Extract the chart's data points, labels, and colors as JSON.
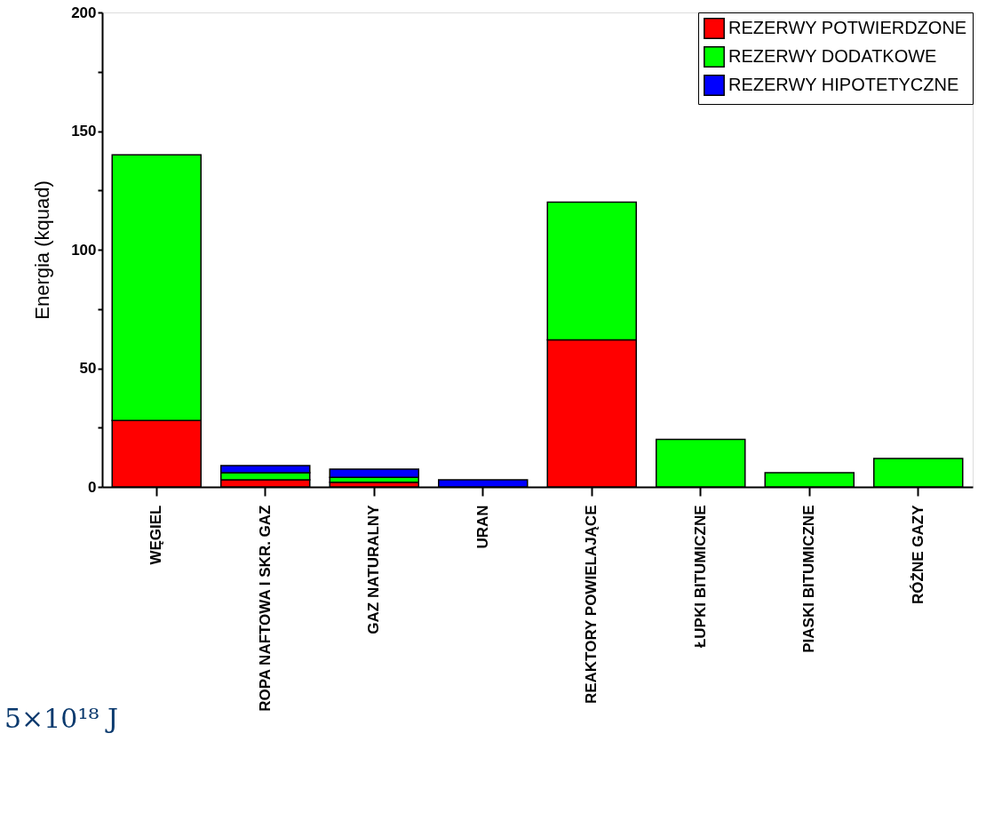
{
  "chart_data": {
    "type": "bar",
    "stacked": true,
    "ylabel": "Energia (kquad)",
    "categories": [
      "WĘGIEL",
      "ROPA NAFTOWA I SKR. GAZ",
      "GAZ NATURALNY",
      "URAN",
      "REAKTORY POWIELAJĄCE",
      "ŁUPKI BITUMICZNE",
      "PIASKI BITUMICZNE",
      "RÓŻNE GAZY"
    ],
    "series": [
      {
        "name": "REZERWY POTWIERDZONE",
        "color": "#ff0000",
        "values": [
          28,
          3,
          2,
          null,
          62,
          null,
          null,
          null
        ]
      },
      {
        "name": "REZERWY DODATKOWE",
        "color": "#00ff00",
        "values": [
          112,
          3,
          2,
          null,
          58,
          20,
          6,
          12
        ]
      },
      {
        "name": "REZERWY HIPOTETYCZNE",
        "color": "#0000ff",
        "values": [
          null,
          3,
          3.5,
          3,
          null,
          null,
          null,
          null
        ]
      }
    ],
    "ylim": [
      0,
      200
    ],
    "yticks": [
      0,
      {
        "value": 25,
        "label": null
      },
      50,
      {
        "value": 75,
        "label": null
      },
      100,
      {
        "value": 125,
        "label": null
      },
      150,
      {
        "value": 175,
        "label": null
      },
      200
    ],
    "grid": false,
    "legend": "top right",
    "annotations": [
      "5×10¹⁸ J"
    ]
  }
}
